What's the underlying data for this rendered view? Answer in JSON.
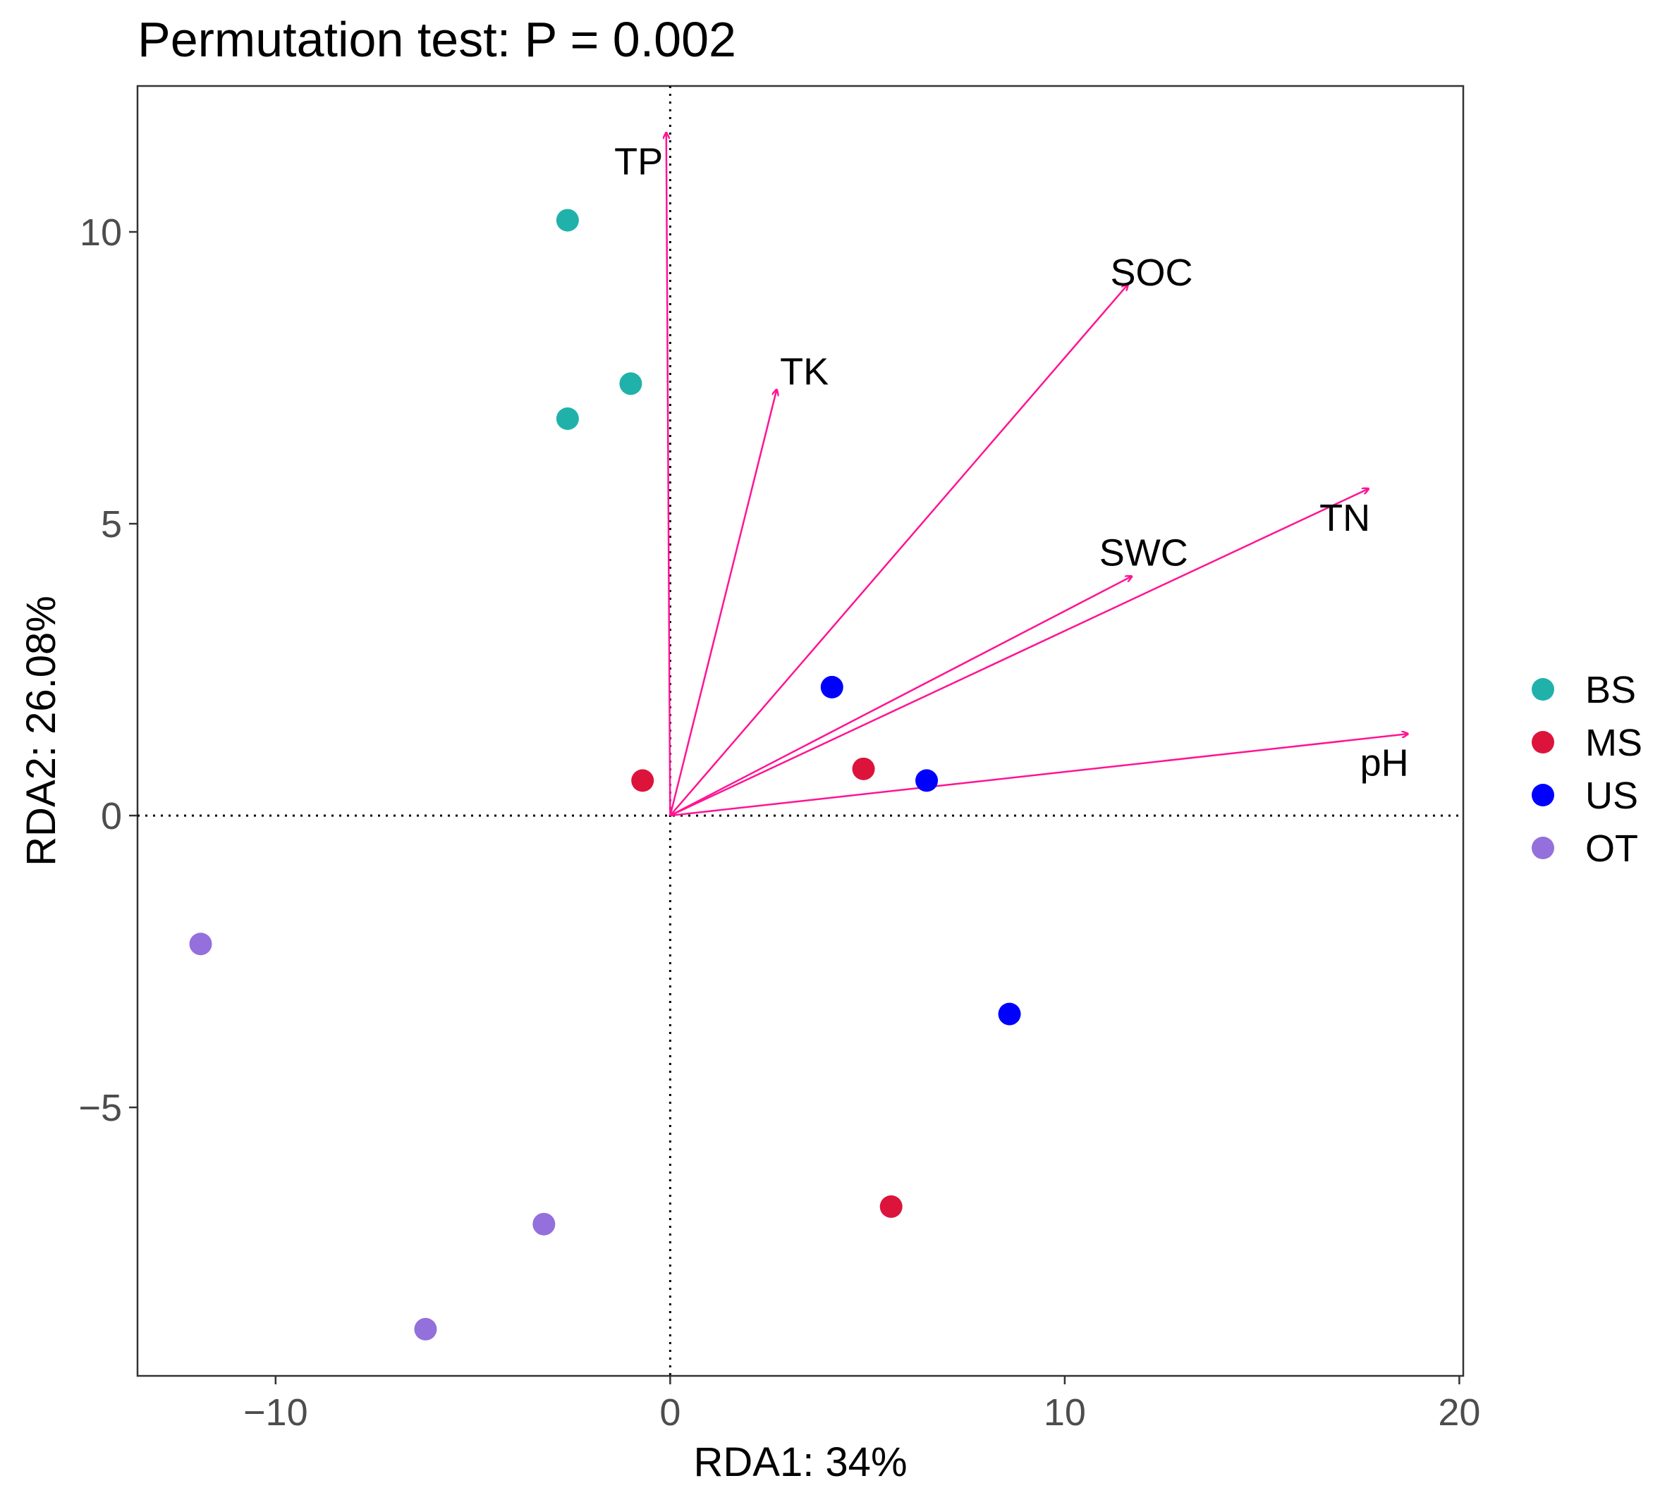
{
  "chart_data": {
    "type": "scatter",
    "title": "Permutation test: P = 0.002",
    "xlabel": "RDA1: 34%",
    "ylabel": "RDA2: 26.08%",
    "xlim": [
      -13.5,
      20.1
    ],
    "ylim": [
      -9.6,
      12.5
    ],
    "xticks": [
      -10,
      0,
      10,
      20
    ],
    "xtick_labels": [
      "−10",
      "0",
      "10",
      "20"
    ],
    "yticks": [
      -5,
      0,
      5,
      10
    ],
    "ytick_labels": [
      "−5",
      "0",
      "5",
      "10"
    ],
    "reference_lines": {
      "x": 0,
      "y": 0,
      "style": "dotted"
    },
    "grid": false,
    "legend_position": "right",
    "groups": [
      {
        "name": "BS",
        "color": "#20b2aa"
      },
      {
        "name": "MS",
        "color": "#dc143c"
      },
      {
        "name": "US",
        "color": "#0000ff"
      },
      {
        "name": "OT",
        "color": "#9370db"
      }
    ],
    "points": [
      {
        "group": "BS",
        "x": -2.6,
        "y": 10.2
      },
      {
        "group": "BS",
        "x": -1.0,
        "y": 7.4
      },
      {
        "group": "BS",
        "x": -2.6,
        "y": 6.8
      },
      {
        "group": "MS",
        "x": -0.7,
        "y": 0.6
      },
      {
        "group": "MS",
        "x": 4.9,
        "y": 0.8
      },
      {
        "group": "MS",
        "x": 5.6,
        "y": -6.7
      },
      {
        "group": "US",
        "x": 4.1,
        "y": 2.2
      },
      {
        "group": "US",
        "x": 6.5,
        "y": 0.6
      },
      {
        "group": "US",
        "x": 8.6,
        "y": -3.4
      },
      {
        "group": "OT",
        "x": -11.9,
        "y": -2.2
      },
      {
        "group": "OT",
        "x": -3.2,
        "y": -7.0
      },
      {
        "group": "OT",
        "x": -6.2,
        "y": -8.8
      }
    ],
    "arrow_color": "#ff1493",
    "arrows": [
      {
        "label": "TP",
        "x": -0.1,
        "y": 11.7,
        "label_x": -0.8,
        "label_y": 11.2
      },
      {
        "label": "TK",
        "x": 2.7,
        "y": 7.3,
        "label_x": 3.4,
        "label_y": 7.6
      },
      {
        "label": "SOC",
        "x": 11.6,
        "y": 9.1,
        "label_x": 12.2,
        "label_y": 9.3
      },
      {
        "label": "SWC",
        "x": 11.7,
        "y": 4.1,
        "label_x": 12.0,
        "label_y": 4.5
      },
      {
        "label": "TN",
        "x": 17.7,
        "y": 5.6,
        "label_x": 17.1,
        "label_y": 5.1
      },
      {
        "label": "pH",
        "x": 18.7,
        "y": 1.4,
        "label_x": 18.1,
        "label_y": 0.9
      }
    ]
  }
}
